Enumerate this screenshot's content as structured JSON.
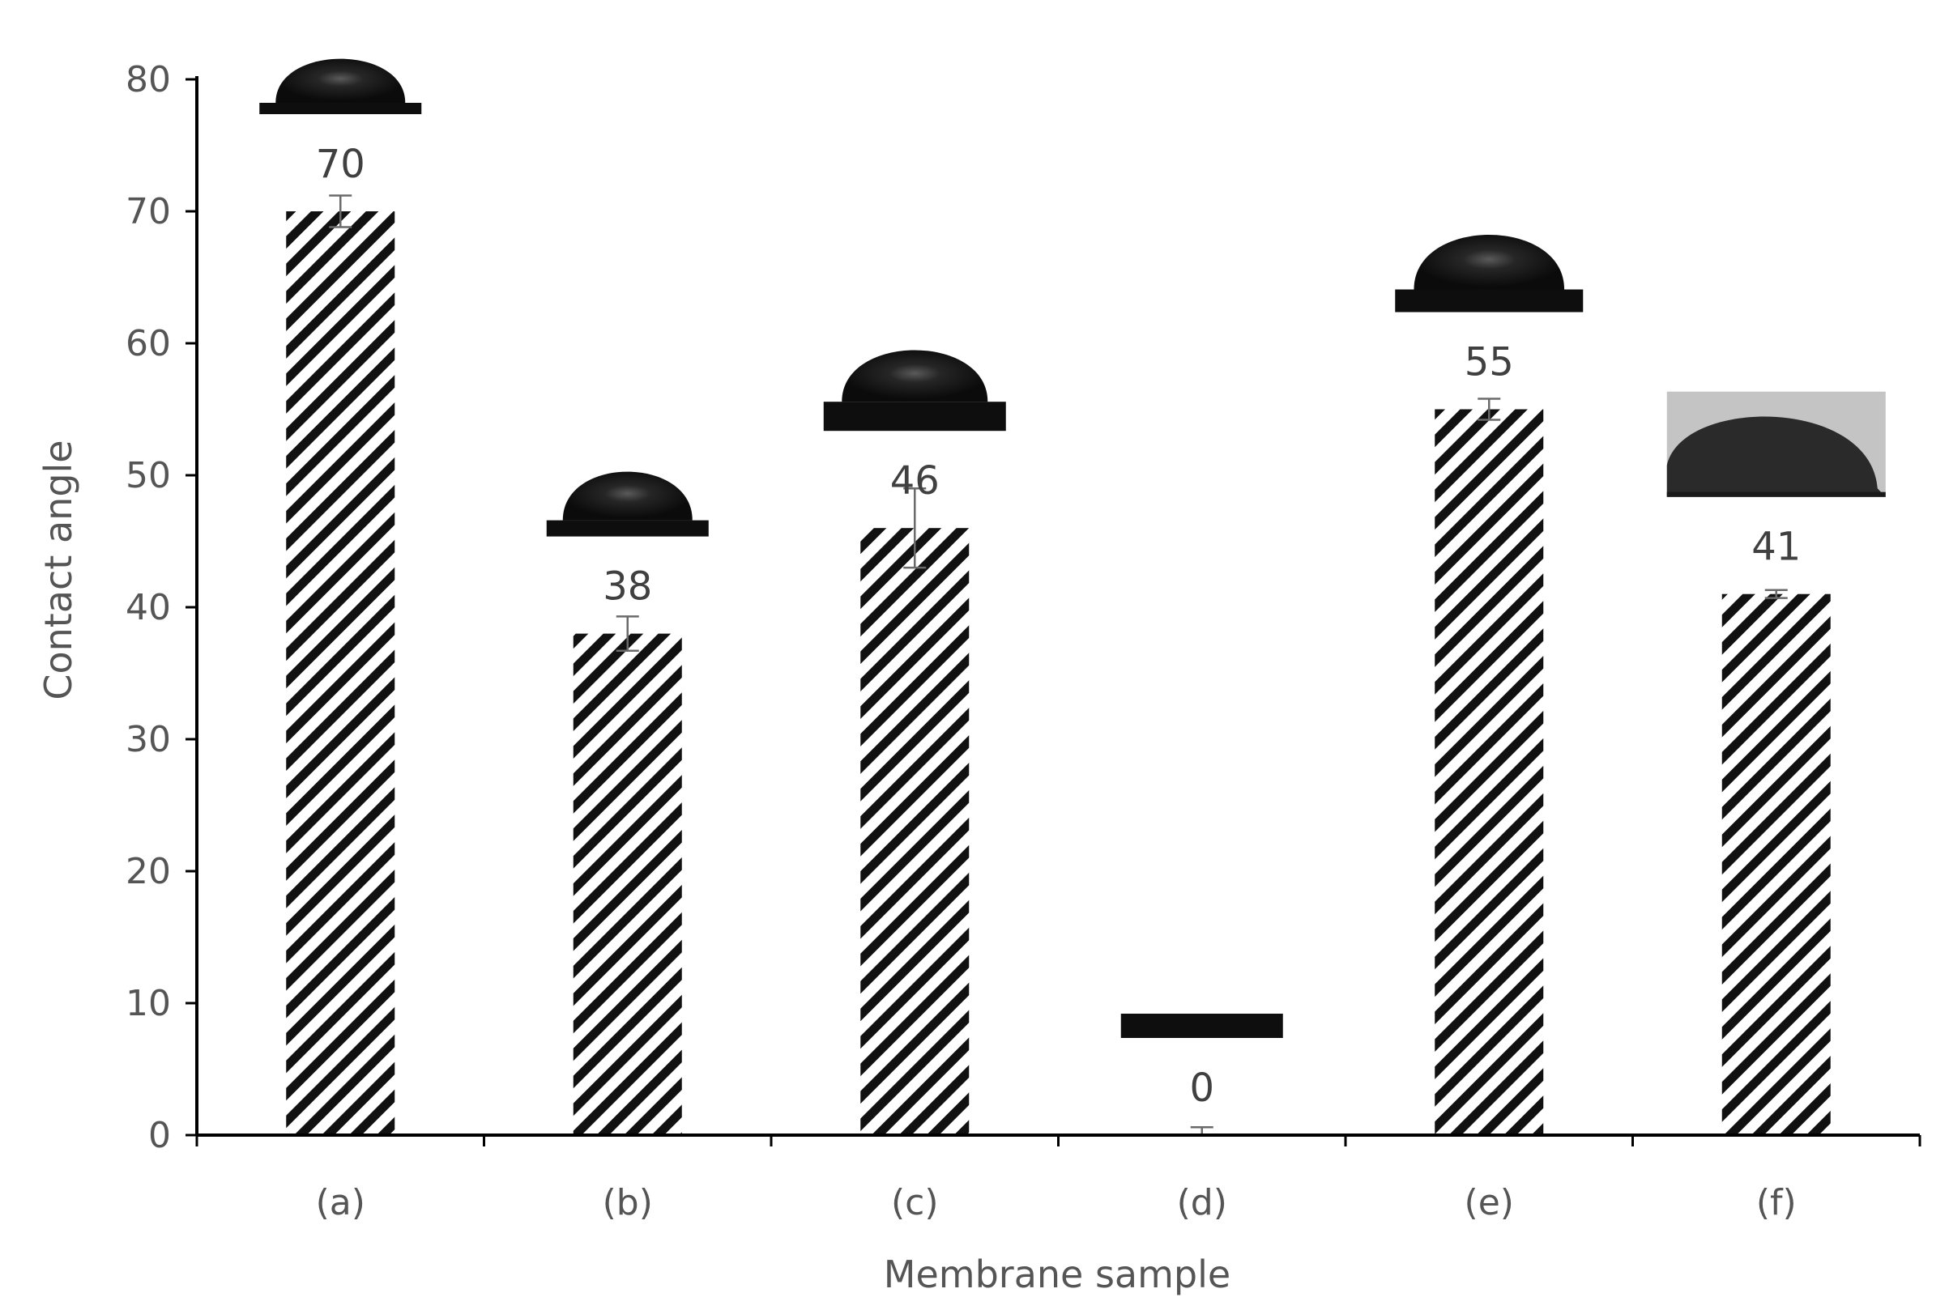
{
  "chart_data": {
    "type": "bar",
    "categories": [
      "(a)",
      "(b)",
      "(c)",
      "(d)",
      "(e)",
      "(f)"
    ],
    "values": [
      70,
      38,
      46,
      0,
      55,
      41
    ],
    "error": [
      1.2,
      1.3,
      3.0,
      0.6,
      0.8,
      0.3
    ],
    "data_labels": [
      "70",
      "38",
      "46",
      "0",
      "55",
      "41"
    ],
    "xlabel": "Membrane sample",
    "ylabel": "Contact angle",
    "ylim": [
      0,
      80
    ],
    "yticks": [
      0,
      10,
      20,
      30,
      40,
      50,
      60,
      70,
      80
    ],
    "ytick_labels": [
      "0",
      "10",
      "20",
      "30",
      "40",
      "50",
      "60",
      "70",
      "80"
    ],
    "grid": false,
    "legend": "none",
    "bar_pattern": "diagonal-hatch",
    "insets": "water droplet photographs above each bar",
    "colors": {
      "hatch": "#111111",
      "axis": "#000000",
      "text": "#555555",
      "droplet": "#0e0e0e",
      "inset_background_f": "#c4c4c4"
    }
  }
}
